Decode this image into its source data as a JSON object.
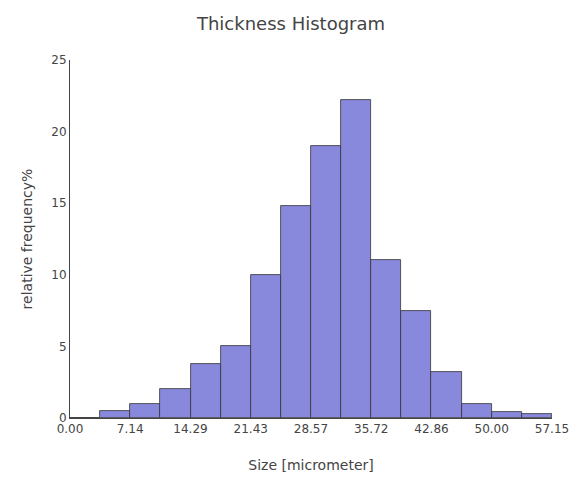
{
  "chart_data": {
    "type": "histogram",
    "title": "Thickness Histogram",
    "xlabel": "Size [micrometer]",
    "ylabel": "relative frequency%",
    "bins": [
      0.0,
      3.57,
      7.14,
      10.715,
      14.29,
      17.865,
      21.43,
      24.995,
      28.57,
      32.145,
      35.715,
      39.285,
      42.86,
      46.43,
      50.0,
      53.575,
      57.145
    ],
    "values": [
      0.0,
      0.5,
      1.0,
      2.0,
      3.8,
      5.0,
      10.0,
      14.8,
      19.0,
      22.2,
      11.0,
      7.5,
      3.2,
      1.0,
      0.4,
      0.3
    ],
    "color": "#8888dd",
    "xlim": [
      0.0,
      57.15
    ],
    "xticks": [
      {
        "value": 0.0,
        "label": "0.00"
      },
      7.14,
      14.29,
      21.43,
      28.57,
      35.72,
      42.86,
      {
        "value": 50.0,
        "label": "50.00"
      },
      57.15
    ],
    "ylim": [
      0,
      25
    ],
    "yticks": [
      0,
      5,
      10,
      15,
      20,
      25
    ],
    "grid": false
  }
}
